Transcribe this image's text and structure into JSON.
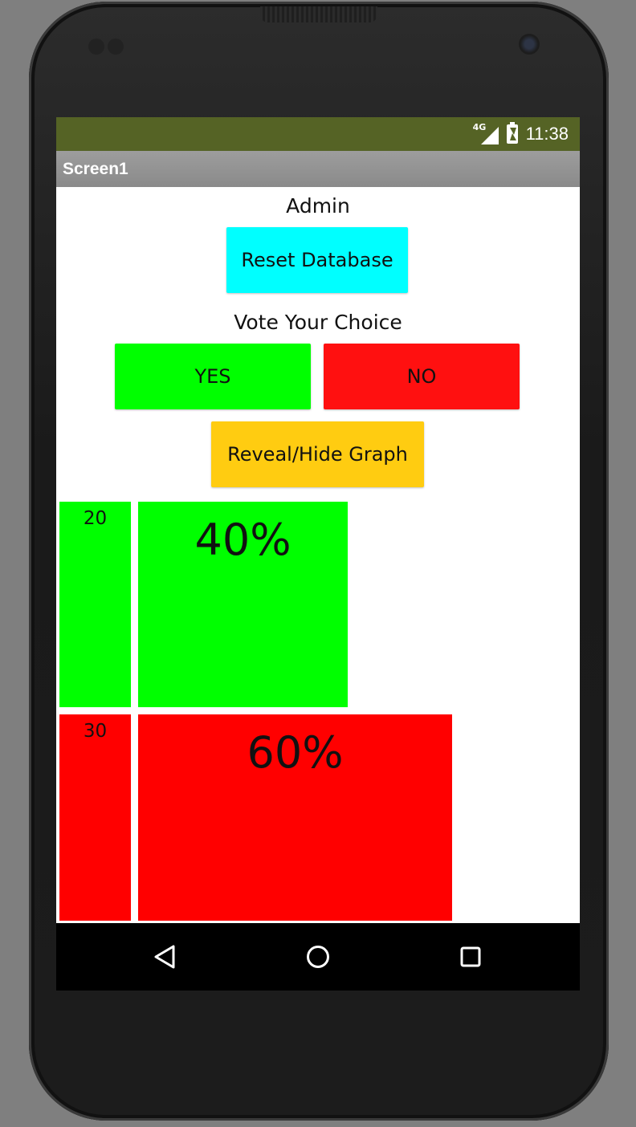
{
  "statusbar": {
    "network": "4G",
    "time": "11:38",
    "color": "#556325"
  },
  "titlebar": {
    "title": "Screen1"
  },
  "admin": {
    "label": "Admin",
    "reset_button": "Reset Database",
    "reset_color": "#00ffff"
  },
  "vote": {
    "label": "Vote Your Choice",
    "yes_button": "YES",
    "no_button": "NO",
    "yes_color": "#00ff00",
    "no_color": "#ff1010"
  },
  "graph": {
    "toggle_button": "Reveal/Hide Graph",
    "toggle_color": "#ffcc11"
  },
  "results": {
    "yes": {
      "count": "20",
      "percent": "40%",
      "fraction": 0.4,
      "color": "#00ff00"
    },
    "no": {
      "count": "30",
      "percent": "60%",
      "fraction": 0.6,
      "color": "#ff0000"
    }
  },
  "navbar": {
    "icons": [
      "back-icon",
      "home-icon",
      "recents-icon"
    ]
  }
}
